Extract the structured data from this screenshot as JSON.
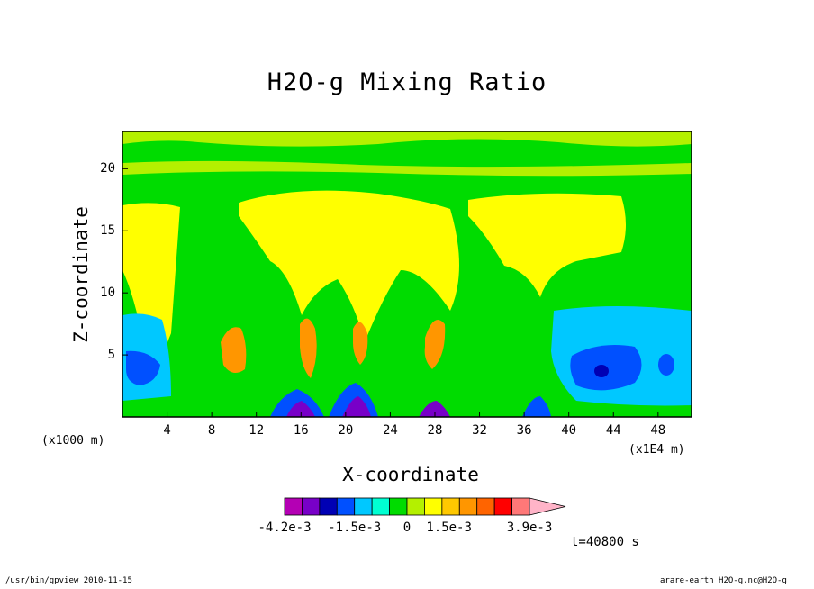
{
  "chart_data": {
    "type": "heatmap",
    "title": "H2O-g Mixing Ratio",
    "xlabel": "X-coordinate",
    "ylabel": "Z-coordinate",
    "x_unit_left": "(x1000 m)",
    "x_unit_right": "(x1E4 m)",
    "x_ticks": [
      "4",
      "8",
      "12",
      "16",
      "20",
      "24",
      "28",
      "32",
      "36",
      "40",
      "44",
      "48"
    ],
    "y_ticks": [
      "5",
      "10",
      "15",
      "20"
    ],
    "xlim": [
      0,
      51
    ],
    "ylim": [
      0,
      23
    ],
    "colorbar": {
      "colors": [
        "#b400b4",
        "#7800c8",
        "#0000b4",
        "#0050ff",
        "#00c8ff",
        "#00ffd2",
        "#00dc00",
        "#b4f000",
        "#ffff00",
        "#ffc800",
        "#ff9600",
        "#ff6400",
        "#ff0000",
        "#ff7878",
        "#ffb4c8"
      ],
      "tick_labels": [
        "-4.2e-3",
        "-1.5e-3",
        "0",
        "1.5e-3",
        "3.9e-3"
      ]
    },
    "time_label": "t=40800 s",
    "footer_left": "/usr/bin/gpview  2010-11-15",
    "footer_right": "arare-earth_H2O-g.nc@H2O-g"
  }
}
